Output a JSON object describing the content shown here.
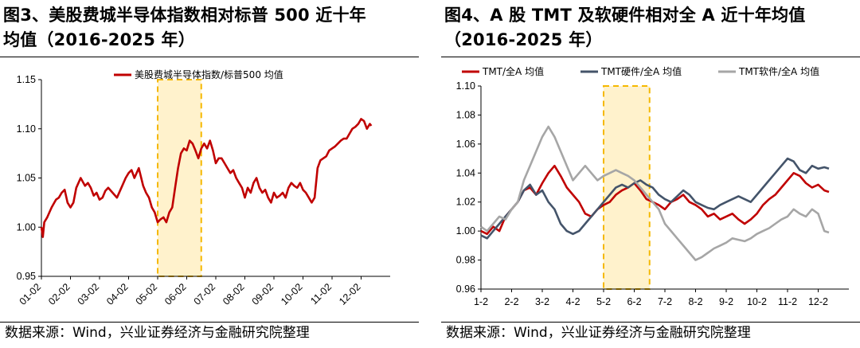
{
  "left": {
    "title_lines": [
      "图3、美股费城半导体指数相对标普 500 近十年",
      "均值（2016-2025 年）"
    ],
    "source": "数据来源：Wind，兴业证券经济与金融研究院整理",
    "chart_data": {
      "type": "line",
      "title": "",
      "xlabel": "",
      "ylabel": "",
      "ylim": [
        0.95,
        1.15
      ],
      "yticks": [
        "0.95",
        "1.00",
        "1.05",
        "1.10",
        "1.15"
      ],
      "xticks": [
        "01-02",
        "02-02",
        "03-02",
        "04-02",
        "05-02",
        "06-02",
        "07-02",
        "08-02",
        "09-02",
        "10-02",
        "11-02",
        "12-02"
      ],
      "xlim": [
        0,
        12
      ],
      "grid": false,
      "legend_position": "top",
      "highlight": {
        "x_from": 4.0,
        "x_to": 5.5
      },
      "series": [
        {
          "name": "美股费城半导体指数/标普500 均值",
          "color": "#C00000",
          "x": [
            0,
            0.05,
            0.1,
            0.2,
            0.35,
            0.5,
            0.6,
            0.7,
            0.8,
            0.9,
            1.0,
            1.1,
            1.2,
            1.35,
            1.5,
            1.6,
            1.7,
            1.8,
            1.9,
            2.0,
            2.1,
            2.2,
            2.3,
            2.45,
            2.6,
            2.75,
            2.9,
            3.0,
            3.1,
            3.2,
            3.35,
            3.5,
            3.6,
            3.7,
            3.8,
            3.9,
            4.0,
            4.1,
            4.2,
            4.3,
            4.4,
            4.5,
            4.6,
            4.7,
            4.8,
            4.9,
            5.0,
            5.1,
            5.2,
            5.3,
            5.4,
            5.5,
            5.6,
            5.7,
            5.8,
            5.9,
            6.0,
            6.1,
            6.2,
            6.3,
            6.4,
            6.5,
            6.6,
            6.7,
            6.8,
            6.9,
            7.0,
            7.1,
            7.2,
            7.3,
            7.4,
            7.5,
            7.6,
            7.7,
            7.8,
            7.9,
            8.0,
            8.1,
            8.2,
            8.3,
            8.4,
            8.5,
            8.6,
            8.7,
            8.8,
            8.9,
            9.0,
            9.1,
            9.2,
            9.3,
            9.4,
            9.5,
            9.6,
            9.7,
            9.8,
            9.9,
            10.0,
            10.1,
            10.2,
            10.3,
            10.4,
            10.5,
            10.6,
            10.7,
            10.8,
            10.9,
            11.0,
            11.1,
            11.2,
            11.3,
            11.35
          ],
          "values": [
            1.0,
            0.99,
            1.005,
            1.01,
            1.02,
            1.028,
            1.03,
            1.035,
            1.038,
            1.025,
            1.02,
            1.025,
            1.04,
            1.05,
            1.042,
            1.045,
            1.04,
            1.032,
            1.035,
            1.028,
            1.03,
            1.037,
            1.04,
            1.035,
            1.03,
            1.04,
            1.05,
            1.055,
            1.058,
            1.05,
            1.06,
            1.042,
            1.035,
            1.03,
            1.02,
            1.015,
            1.005,
            1.008,
            1.01,
            1.005,
            1.015,
            1.02,
            1.04,
            1.06,
            1.075,
            1.08,
            1.078,
            1.088,
            1.085,
            1.078,
            1.07,
            1.08,
            1.085,
            1.08,
            1.088,
            1.078,
            1.065,
            1.07,
            1.07,
            1.065,
            1.06,
            1.055,
            1.058,
            1.05,
            1.045,
            1.04,
            1.03,
            1.04,
            1.035,
            1.045,
            1.05,
            1.04,
            1.035,
            1.038,
            1.03,
            1.025,
            1.035,
            1.03,
            1.032,
            1.035,
            1.03,
            1.04,
            1.045,
            1.042,
            1.04,
            1.045,
            1.038,
            1.035,
            1.03,
            1.025,
            1.03,
            1.06,
            1.068,
            1.07,
            1.072,
            1.078,
            1.08,
            1.082,
            1.085,
            1.088,
            1.09,
            1.09,
            1.095,
            1.1,
            1.102,
            1.105,
            1.11,
            1.108,
            1.1,
            1.105,
            1.103
          ]
        }
      ]
    }
  },
  "right": {
    "title_lines": [
      "图4、A 股 TMT 及软硬件相对全 A 近十年均值",
      "（2016-2025 年）"
    ],
    "source": "数据来源：Wind，兴业证券经济与金融研究院整理",
    "chart_data": {
      "type": "line",
      "title": "",
      "xlabel": "",
      "ylabel": "",
      "ylim": [
        0.96,
        1.1
      ],
      "yticks": [
        "0.96",
        "0.98",
        "1.00",
        "1.02",
        "1.04",
        "1.06",
        "1.08",
        "1.10"
      ],
      "xticks": [
        "1-2",
        "2-2",
        "3-2",
        "4-2",
        "5-2",
        "6-2",
        "7-2",
        "8-2",
        "9-2",
        "10-2",
        "11-2",
        "12-2"
      ],
      "xlim": [
        0,
        12
      ],
      "grid": false,
      "legend_position": "top",
      "highlight": {
        "x_from": 4.0,
        "x_to": 5.5
      },
      "series": [
        {
          "name": "TMT/全A 均值",
          "color": "#C00000",
          "x": [
            0,
            0.2,
            0.4,
            0.6,
            0.8,
            1.0,
            1.2,
            1.4,
            1.6,
            1.8,
            2.0,
            2.2,
            2.4,
            2.6,
            2.8,
            3.0,
            3.2,
            3.4,
            3.6,
            3.8,
            4.0,
            4.2,
            4.4,
            4.6,
            4.8,
            5.0,
            5.2,
            5.4,
            5.6,
            5.8,
            6.0,
            6.2,
            6.4,
            6.6,
            6.8,
            7.0,
            7.2,
            7.4,
            7.6,
            7.8,
            8.0,
            8.2,
            8.4,
            8.6,
            8.8,
            9.0,
            9.2,
            9.4,
            9.6,
            9.8,
            10.0,
            10.2,
            10.4,
            10.6,
            10.8,
            11.0,
            11.2,
            11.35
          ],
          "values": [
            1.0,
            0.998,
            1.003,
            1.0,
            1.01,
            1.015,
            1.02,
            1.028,
            1.03,
            1.025,
            1.033,
            1.04,
            1.045,
            1.038,
            1.03,
            1.025,
            1.02,
            1.012,
            1.01,
            1.015,
            1.018,
            1.02,
            1.025,
            1.028,
            1.03,
            1.033,
            1.028,
            1.022,
            1.02,
            1.018,
            1.015,
            1.02,
            1.022,
            1.025,
            1.02,
            1.018,
            1.015,
            1.01,
            1.012,
            1.008,
            1.01,
            1.012,
            1.008,
            1.005,
            1.008,
            1.012,
            1.018,
            1.022,
            1.025,
            1.03,
            1.035,
            1.04,
            1.038,
            1.033,
            1.03,
            1.032,
            1.028,
            1.027
          ]
        },
        {
          "name": "TMT硬件/全A 均值",
          "color": "#44546A",
          "x": [
            0,
            0.2,
            0.4,
            0.6,
            0.8,
            1.0,
            1.2,
            1.4,
            1.6,
            1.8,
            2.0,
            2.2,
            2.4,
            2.6,
            2.8,
            3.0,
            3.2,
            3.4,
            3.6,
            3.8,
            4.0,
            4.2,
            4.4,
            4.6,
            4.8,
            5.0,
            5.2,
            5.4,
            5.6,
            5.8,
            6.0,
            6.2,
            6.4,
            6.6,
            6.8,
            7.0,
            7.2,
            7.4,
            7.6,
            7.8,
            8.0,
            8.2,
            8.4,
            8.6,
            8.8,
            9.0,
            9.2,
            9.4,
            9.6,
            9.8,
            10.0,
            10.2,
            10.4,
            10.6,
            10.8,
            11.0,
            11.2,
            11.35
          ],
          "values": [
            0.997,
            0.995,
            1.0,
            1.005,
            1.01,
            1.015,
            1.02,
            1.028,
            1.032,
            1.025,
            1.028,
            1.02,
            1.015,
            1.005,
            1.0,
            0.998,
            1.0,
            1.005,
            1.01,
            1.015,
            1.02,
            1.025,
            1.03,
            1.032,
            1.03,
            1.033,
            1.035,
            1.032,
            1.03,
            1.025,
            1.022,
            1.02,
            1.024,
            1.028,
            1.025,
            1.02,
            1.018,
            1.016,
            1.015,
            1.018,
            1.02,
            1.022,
            1.024,
            1.022,
            1.02,
            1.025,
            1.03,
            1.035,
            1.04,
            1.045,
            1.05,
            1.048,
            1.042,
            1.04,
            1.045,
            1.043,
            1.044,
            1.043
          ]
        },
        {
          "name": "TMT软件/全A 均值",
          "color": "#A6A6A6",
          "x": [
            0,
            0.2,
            0.4,
            0.6,
            0.8,
            1.0,
            1.2,
            1.4,
            1.6,
            1.8,
            2.0,
            2.2,
            2.4,
            2.6,
            2.8,
            3.0,
            3.2,
            3.4,
            3.6,
            3.8,
            4.0,
            4.2,
            4.4,
            4.6,
            4.8,
            5.0,
            5.2,
            5.4,
            5.6,
            5.8,
            6.0,
            6.2,
            6.4,
            6.6,
            6.8,
            7.0,
            7.2,
            7.4,
            7.6,
            7.8,
            8.0,
            8.2,
            8.4,
            8.6,
            8.8,
            9.0,
            9.2,
            9.4,
            9.6,
            9.8,
            10.0,
            10.2,
            10.4,
            10.6,
            10.8,
            11.0,
            11.2,
            11.35
          ],
          "values": [
            1.003,
            1.0,
            1.005,
            1.01,
            1.008,
            1.015,
            1.02,
            1.035,
            1.045,
            1.055,
            1.065,
            1.072,
            1.065,
            1.055,
            1.045,
            1.035,
            1.04,
            1.045,
            1.04,
            1.035,
            1.038,
            1.04,
            1.042,
            1.04,
            1.038,
            1.035,
            1.03,
            1.025,
            1.02,
            1.015,
            1.005,
            1.0,
            0.995,
            0.99,
            0.985,
            0.98,
            0.982,
            0.985,
            0.988,
            0.99,
            0.992,
            0.995,
            0.994,
            0.993,
            0.995,
            0.998,
            1.0,
            1.002,
            1.005,
            1.008,
            1.01,
            1.015,
            1.012,
            1.01,
            1.015,
            1.012,
            1.0,
            0.999
          ]
        }
      ]
    }
  }
}
